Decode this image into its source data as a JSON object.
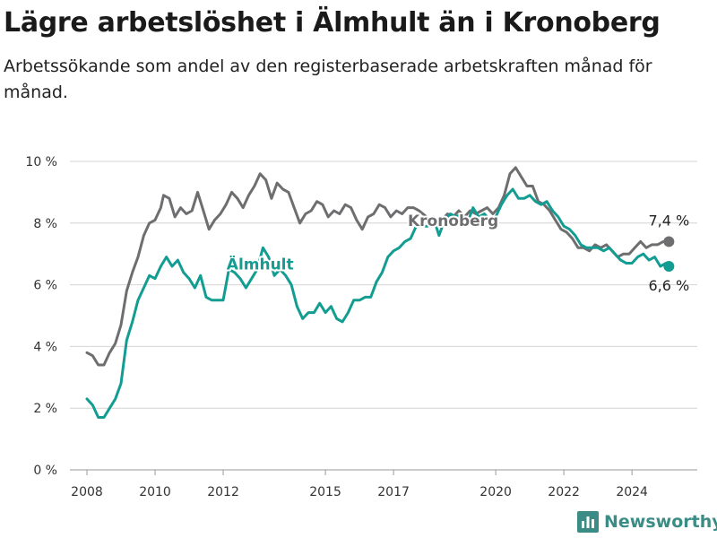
{
  "title": "Lägre arbetslöshet i Älmhult än i Kronoberg",
  "subtitle": "Arbetssökande som andel av den registerbaserade arbetskraften månad för månad.",
  "brand": {
    "name": "Newsworthy",
    "icon": "bar-chart-logo-icon",
    "color": "#3b8c85"
  },
  "chart_data": {
    "type": "line",
    "x_axis": {
      "type": "time",
      "range": [
        "2007-07-01",
        "2025-12-01"
      ],
      "ticks": [
        "2008",
        "2010",
        "2012",
        "2015",
        "2017",
        "2020",
        "2022",
        "2024"
      ]
    },
    "y_axis": {
      "range": [
        0,
        10
      ],
      "ticks": [
        "0 %",
        "2 %",
        "4 %",
        "6 %",
        "8 %",
        "10 %"
      ],
      "grid": true
    },
    "series": [
      {
        "name": "Kronoberg",
        "color": "#6e6e70",
        "end_label": "7,4 %",
        "points": [
          [
            "2008-01",
            3.8
          ],
          [
            "2008-03",
            3.7
          ],
          [
            "2008-05",
            3.4
          ],
          [
            "2008-07",
            3.4
          ],
          [
            "2008-09",
            3.8
          ],
          [
            "2008-11",
            4.1
          ],
          [
            "2009-01",
            4.7
          ],
          [
            "2009-03",
            5.8
          ],
          [
            "2009-05",
            6.4
          ],
          [
            "2009-07",
            6.9
          ],
          [
            "2009-09",
            7.6
          ],
          [
            "2009-11",
            8.0
          ],
          [
            "2010-01",
            8.1
          ],
          [
            "2010-03",
            8.5
          ],
          [
            "2010-04",
            8.9
          ],
          [
            "2010-06",
            8.8
          ],
          [
            "2010-08",
            8.2
          ],
          [
            "2010-10",
            8.5
          ],
          [
            "2010-12",
            8.3
          ],
          [
            "2011-02",
            8.4
          ],
          [
            "2011-04",
            9.0
          ],
          [
            "2011-06",
            8.4
          ],
          [
            "2011-08",
            7.8
          ],
          [
            "2011-10",
            8.1
          ],
          [
            "2011-12",
            8.3
          ],
          [
            "2012-02",
            8.6
          ],
          [
            "2012-04",
            9.0
          ],
          [
            "2012-06",
            8.8
          ],
          [
            "2012-08",
            8.5
          ],
          [
            "2012-10",
            8.9
          ],
          [
            "2012-12",
            9.2
          ],
          [
            "2013-02",
            9.6
          ],
          [
            "2013-04",
            9.4
          ],
          [
            "2013-06",
            8.8
          ],
          [
            "2013-08",
            9.3
          ],
          [
            "2013-10",
            9.1
          ],
          [
            "2013-12",
            9.0
          ],
          [
            "2014-02",
            8.5
          ],
          [
            "2014-04",
            8.0
          ],
          [
            "2014-06",
            8.3
          ],
          [
            "2014-08",
            8.4
          ],
          [
            "2014-10",
            8.7
          ],
          [
            "2014-12",
            8.6
          ],
          [
            "2015-02",
            8.2
          ],
          [
            "2015-04",
            8.4
          ],
          [
            "2015-06",
            8.3
          ],
          [
            "2015-08",
            8.6
          ],
          [
            "2015-10",
            8.5
          ],
          [
            "2015-12",
            8.1
          ],
          [
            "2016-02",
            7.8
          ],
          [
            "2016-04",
            8.2
          ],
          [
            "2016-06",
            8.3
          ],
          [
            "2016-08",
            8.6
          ],
          [
            "2016-10",
            8.5
          ],
          [
            "2016-12",
            8.2
          ],
          [
            "2017-02",
            8.4
          ],
          [
            "2017-04",
            8.3
          ],
          [
            "2017-06",
            8.5
          ],
          [
            "2017-08",
            8.5
          ],
          [
            "2017-10",
            8.4
          ],
          [
            "2018-02",
            8.1
          ],
          [
            "2018-04",
            8.0
          ],
          [
            "2018-06",
            8.1
          ],
          [
            "2018-08",
            8.3
          ],
          [
            "2018-10",
            8.2
          ],
          [
            "2018-12",
            8.4
          ],
          [
            "2019-02",
            8.2
          ],
          [
            "2019-04",
            8.4
          ],
          [
            "2019-06",
            8.3
          ],
          [
            "2019-08",
            8.4
          ],
          [
            "2019-10",
            8.5
          ],
          [
            "2019-12",
            8.3
          ],
          [
            "2020-02",
            8.5
          ],
          [
            "2020-04",
            8.9
          ],
          [
            "2020-06",
            9.6
          ],
          [
            "2020-08",
            9.8
          ],
          [
            "2020-10",
            9.5
          ],
          [
            "2020-12",
            9.2
          ],
          [
            "2021-02",
            9.2
          ],
          [
            "2021-04",
            8.7
          ],
          [
            "2021-06",
            8.6
          ],
          [
            "2021-08",
            8.4
          ],
          [
            "2021-10",
            8.1
          ],
          [
            "2021-12",
            7.8
          ],
          [
            "2022-02",
            7.7
          ],
          [
            "2022-04",
            7.5
          ],
          [
            "2022-06",
            7.2
          ],
          [
            "2022-08",
            7.2
          ],
          [
            "2022-10",
            7.1
          ],
          [
            "2022-12",
            7.3
          ],
          [
            "2023-02",
            7.2
          ],
          [
            "2023-04",
            7.3
          ],
          [
            "2023-06",
            7.1
          ],
          [
            "2023-08",
            6.9
          ],
          [
            "2023-10",
            7.0
          ],
          [
            "2023-12",
            7.0
          ],
          [
            "2024-02",
            7.2
          ],
          [
            "2024-04",
            7.4
          ],
          [
            "2024-06",
            7.2
          ],
          [
            "2024-08",
            7.3
          ],
          [
            "2024-10",
            7.3
          ],
          [
            "2024-12",
            7.4
          ],
          [
            "2025-02",
            7.4
          ]
        ]
      },
      {
        "name": "Älmhult",
        "color": "#139d92",
        "end_label": "6,6 %",
        "points": [
          [
            "2008-01",
            2.3
          ],
          [
            "2008-03",
            2.1
          ],
          [
            "2008-05",
            1.7
          ],
          [
            "2008-07",
            1.7
          ],
          [
            "2008-09",
            2.0
          ],
          [
            "2008-11",
            2.3
          ],
          [
            "2009-01",
            2.8
          ],
          [
            "2009-03",
            4.2
          ],
          [
            "2009-05",
            4.8
          ],
          [
            "2009-07",
            5.5
          ],
          [
            "2009-09",
            5.9
          ],
          [
            "2009-11",
            6.3
          ],
          [
            "2010-01",
            6.2
          ],
          [
            "2010-03",
            6.6
          ],
          [
            "2010-05",
            6.9
          ],
          [
            "2010-07",
            6.6
          ],
          [
            "2010-09",
            6.8
          ],
          [
            "2010-11",
            6.4
          ],
          [
            "2011-01",
            6.2
          ],
          [
            "2011-03",
            5.9
          ],
          [
            "2011-05",
            6.3
          ],
          [
            "2011-07",
            5.6
          ],
          [
            "2011-09",
            5.5
          ],
          [
            "2011-11",
            5.5
          ],
          [
            "2012-01",
            5.5
          ],
          [
            "2012-03",
            6.5
          ],
          [
            "2012-05",
            6.4
          ],
          [
            "2012-07",
            6.2
          ],
          [
            "2012-09",
            5.9
          ],
          [
            "2012-11",
            6.2
          ],
          [
            "2013-01",
            6.5
          ],
          [
            "2013-03",
            7.2
          ],
          [
            "2013-05",
            6.9
          ],
          [
            "2013-07",
            6.3
          ],
          [
            "2013-09",
            6.5
          ],
          [
            "2013-11",
            6.3
          ],
          [
            "2014-01",
            6.0
          ],
          [
            "2014-03",
            5.3
          ],
          [
            "2014-05",
            4.9
          ],
          [
            "2014-07",
            5.1
          ],
          [
            "2014-09",
            5.1
          ],
          [
            "2014-11",
            5.4
          ],
          [
            "2015-01",
            5.1
          ],
          [
            "2015-03",
            5.3
          ],
          [
            "2015-05",
            4.9
          ],
          [
            "2015-07",
            4.8
          ],
          [
            "2015-09",
            5.1
          ],
          [
            "2015-11",
            5.5
          ],
          [
            "2016-01",
            5.5
          ],
          [
            "2016-03",
            5.6
          ],
          [
            "2016-05",
            5.6
          ],
          [
            "2016-07",
            6.1
          ],
          [
            "2016-09",
            6.4
          ],
          [
            "2016-11",
            6.9
          ],
          [
            "2017-01",
            7.1
          ],
          [
            "2017-03",
            7.2
          ],
          [
            "2017-05",
            7.4
          ],
          [
            "2017-07",
            7.5
          ],
          [
            "2017-09",
            7.9
          ],
          [
            "2018-01",
            7.9
          ],
          [
            "2018-03",
            8.2
          ],
          [
            "2018-05",
            7.6
          ],
          [
            "2018-07",
            8.1
          ],
          [
            "2018-09",
            8.3
          ],
          [
            "2018-11",
            8.2
          ],
          [
            "2019-01",
            8.3
          ],
          [
            "2019-03",
            8.0
          ],
          [
            "2019-05",
            8.5
          ],
          [
            "2019-07",
            8.2
          ],
          [
            "2019-09",
            8.3
          ],
          [
            "2019-11",
            8.1
          ],
          [
            "2020-01",
            8.2
          ],
          [
            "2020-03",
            8.6
          ],
          [
            "2020-05",
            8.9
          ],
          [
            "2020-07",
            9.1
          ],
          [
            "2020-09",
            8.8
          ],
          [
            "2020-11",
            8.8
          ],
          [
            "2021-01",
            8.9
          ],
          [
            "2021-03",
            8.7
          ],
          [
            "2021-05",
            8.6
          ],
          [
            "2021-07",
            8.7
          ],
          [
            "2021-09",
            8.4
          ],
          [
            "2021-11",
            8.2
          ],
          [
            "2022-01",
            7.9
          ],
          [
            "2022-03",
            7.8
          ],
          [
            "2022-05",
            7.6
          ],
          [
            "2022-07",
            7.3
          ],
          [
            "2022-09",
            7.2
          ],
          [
            "2022-11",
            7.2
          ],
          [
            "2023-01",
            7.2
          ],
          [
            "2023-03",
            7.1
          ],
          [
            "2023-05",
            7.2
          ],
          [
            "2023-07",
            7.0
          ],
          [
            "2023-09",
            6.8
          ],
          [
            "2023-11",
            6.7
          ],
          [
            "2024-01",
            6.7
          ],
          [
            "2024-03",
            6.9
          ],
          [
            "2024-05",
            7.0
          ],
          [
            "2024-07",
            6.8
          ],
          [
            "2024-09",
            6.9
          ],
          [
            "2024-11",
            6.6
          ],
          [
            "2025-01",
            6.7
          ],
          [
            "2025-02",
            6.6
          ]
        ]
      }
    ]
  }
}
